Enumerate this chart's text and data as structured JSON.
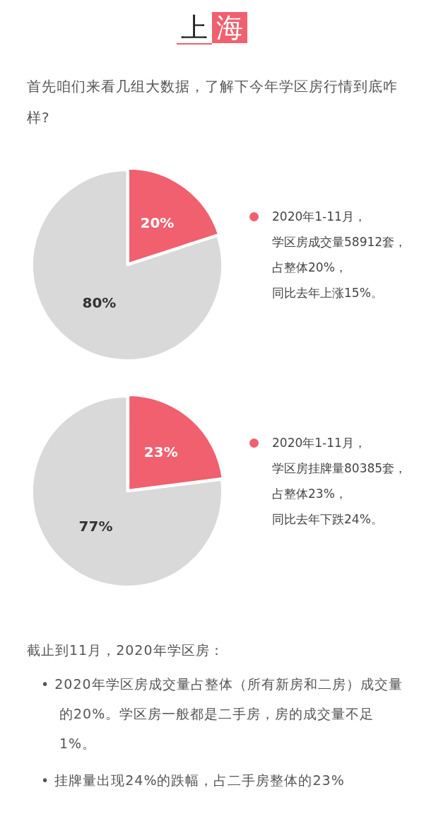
{
  "chart_data": [
    {
      "type": "pie",
      "title": "上海",
      "subtitle": "首先咱们来看几组大数据，了解下今年学区房行情到底咋样?",
      "categories": [
        null,
        null
      ],
      "values": [
        20,
        80
      ],
      "colors": [
        "#f0606e",
        "#d9d9d9"
      ],
      "value_labels": [
        "20%",
        "80%"
      ],
      "legend": false,
      "annotations": [
        "2020年1-11月，",
        "学区房成交量58912套，",
        "占整体20%，",
        "同比去年上涨15%。"
      ]
    },
    {
      "type": "pie",
      "categories": [
        null,
        null
      ],
      "values": [
        23,
        77
      ],
      "colors": [
        "#f0606e",
        "#d9d9d9"
      ],
      "value_labels": [
        "23%",
        "77%"
      ],
      "legend": false,
      "annotations": [
        "2020年1-11月，",
        "学区房挂牌量80385套，",
        "占整体23%，",
        "同比去年下跌24%。"
      ]
    },
    {
      "type": "other",
      "annotations": [
        "截止到11月，2020年学区房：",
        "• 2020年学区房成交量占整体（所有新房和二房）成交量的20%。学区房一般都是二手房，房的成交量不足1%。",
        "• 挂牌量出现24%的跌幅，占二手房整体的23%"
      ]
    }
  ]
}
